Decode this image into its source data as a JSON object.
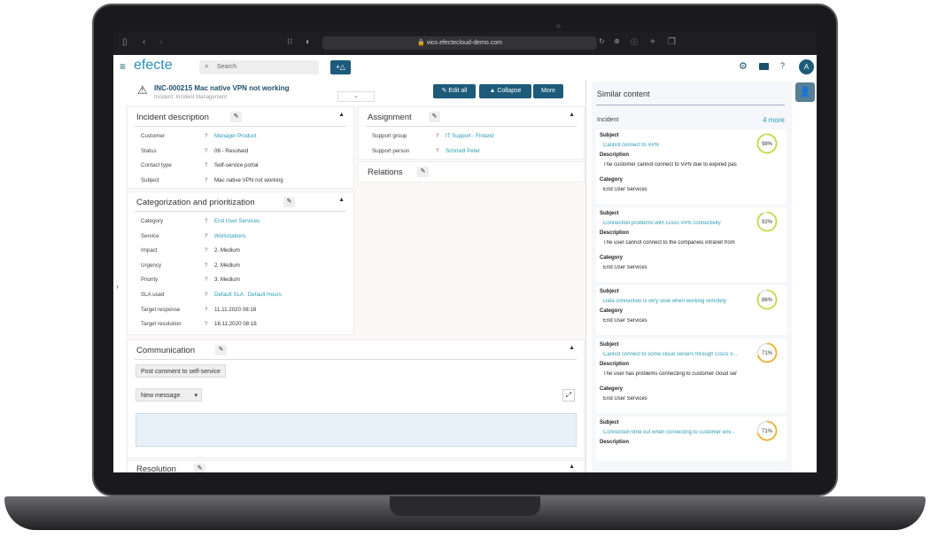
{
  "browser": {
    "url": "vico.efectecloud-demo.com"
  },
  "header": {
    "logo": "efecte",
    "search_placeholder": "Search",
    "new_button": "+△",
    "avatar": "A"
  },
  "record": {
    "title": "INC-000215 Mac native VPN not working",
    "subtitle": "Incident: Incident Management",
    "edit_all": "Edit all",
    "collapse": "Collapse",
    "more": "More"
  },
  "incident_description": {
    "title": "Incident description",
    "rows": [
      {
        "label": "Customer",
        "value": "Manager Product",
        "link": true
      },
      {
        "label": "Status",
        "value": "06 - Resolved",
        "link": false
      },
      {
        "label": "Contact type",
        "value": "Self-service portal",
        "link": false
      },
      {
        "label": "Subject",
        "value": "Mac native VPN not working",
        "link": false
      }
    ]
  },
  "assignment": {
    "title": "Assignment",
    "rows": [
      {
        "label": "Support group",
        "value": "IT Support - Finland",
        "link": true
      },
      {
        "label": "Support person",
        "value": "Schmidt Peter",
        "link": true
      }
    ]
  },
  "relations": {
    "title": "Relations"
  },
  "categorization": {
    "title": "Categorization and prioritization",
    "rows": [
      {
        "label": "Category",
        "value": "End User Services",
        "link": true
      },
      {
        "label": "Service",
        "value": "Workstations",
        "link": true
      },
      {
        "label": "Impact",
        "value": "2. Medium",
        "link": false
      },
      {
        "label": "Urgency",
        "value": "2. Medium",
        "link": false
      },
      {
        "label": "Priority",
        "value": "3. Medium",
        "link": false
      },
      {
        "label": "SLA used",
        "value": "Default SLA : Default Hours",
        "link": true
      },
      {
        "label": "Target response",
        "value": "11.11.2020 08:18",
        "link": false
      },
      {
        "label": "Target resolution",
        "value": "16.11.2020 08:18",
        "link": false
      }
    ]
  },
  "communication": {
    "title": "Communication",
    "post_comment": "Post comment to self-service",
    "new_message": "New message"
  },
  "resolution": {
    "title": "Resolution"
  },
  "help_mark": "?",
  "similar": {
    "title": "Similar content",
    "section": "Incident",
    "more": "4 more",
    "subject_label": "Subject",
    "description_label": "Description",
    "category_label": "Category",
    "cards": [
      {
        "subject": "Cannot connect to VPN",
        "description": "The customer cannot connect to VPN due to expired pas",
        "category": "End User Services",
        "score": "98%",
        "pct": 98,
        "color": "#c5d94a"
      },
      {
        "subject": "Connection problems with Cisco VPN connectivity",
        "description": "The user cannot connect to the companies intranet from",
        "category": "End User Services",
        "score": "92%",
        "pct": 92,
        "color": "#c5d94a"
      },
      {
        "subject": "Data connection is very slow when working remotely",
        "description": null,
        "category": "End User Services",
        "score": "86%",
        "pct": 86,
        "color": "#c5d94a"
      },
      {
        "subject": "Cannot connect to some cloud servers through Cisco V...",
        "description": "The user has problems connecting to customer cloud ser",
        "category": "End User Services",
        "score": "71%",
        "pct": 71,
        "color": "#f0b030"
      },
      {
        "subject": "Connection time out when connecting to customer env...",
        "description": "",
        "category": null,
        "score": "71%",
        "pct": 71,
        "color": "#f0b030"
      }
    ]
  }
}
